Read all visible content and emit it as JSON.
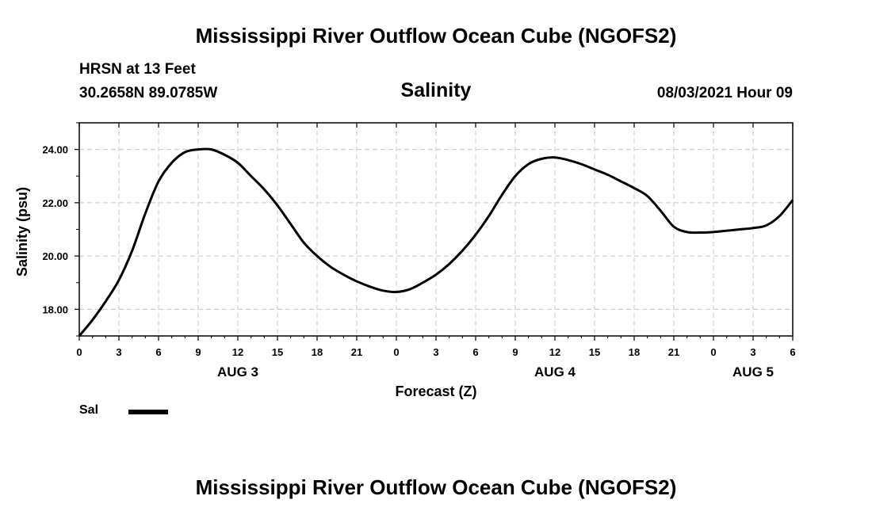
{
  "header": {
    "title_top": "Mississippi River Outflow Ocean Cube (NGOFS2)",
    "station": "HRSN at 13 Feet",
    "coords": "30.2658N  89.0785W",
    "subtitle": "Salinity",
    "timestamp": "08/03/2021 Hour 09",
    "title_bottom": "Mississippi River Outflow Ocean Cube (NGOFS2)"
  },
  "legend": {
    "series_label": "Sal",
    "color": "#000000"
  },
  "chart_data": {
    "type": "line",
    "title": "Salinity",
    "xlabel": "Forecast (Z)",
    "ylabel": "Salinity (psu)",
    "xlim": [
      0,
      54
    ],
    "ylim": [
      17,
      25
    ],
    "x_ticks": [
      0,
      3,
      6,
      9,
      12,
      15,
      18,
      21,
      24,
      27,
      30,
      33,
      36,
      39,
      42,
      45,
      48,
      51,
      54
    ],
    "x_tick_labels": [
      "0",
      "3",
      "6",
      "9",
      "12",
      "15",
      "18",
      "21",
      "0",
      "3",
      "6",
      "9",
      "12",
      "15",
      "18",
      "21",
      "0",
      "3",
      "6"
    ],
    "y_ticks": [
      18,
      20,
      22,
      24
    ],
    "y_tick_labels": [
      "18.00",
      "20.00",
      "22.00",
      "24.00"
    ],
    "day_labels": [
      {
        "x": 12,
        "label": "AUG 3"
      },
      {
        "x": 36,
        "label": "AUG 4"
      },
      {
        "x": 51,
        "label": "AUG 5"
      }
    ],
    "grid": true,
    "series": [
      {
        "name": "Sal",
        "color": "#000000",
        "x": [
          0,
          1,
          2,
          3,
          4,
          5,
          6,
          7,
          8,
          9,
          10,
          11,
          12,
          13,
          14,
          15,
          16,
          17,
          18,
          19,
          20,
          21,
          22,
          23,
          24,
          25,
          26,
          27,
          28,
          29,
          30,
          31,
          32,
          33,
          34,
          35,
          36,
          37,
          38,
          39,
          40,
          41,
          42,
          43,
          44,
          45,
          46,
          47,
          48,
          49,
          50,
          51,
          52,
          53,
          54
        ],
        "y": [
          17.0,
          17.6,
          18.3,
          19.1,
          20.2,
          21.6,
          22.8,
          23.5,
          23.9,
          24.0,
          24.0,
          23.8,
          23.5,
          23.0,
          22.5,
          21.9,
          21.2,
          20.5,
          20.0,
          19.6,
          19.3,
          19.05,
          18.85,
          18.7,
          18.65,
          18.75,
          19.0,
          19.3,
          19.7,
          20.2,
          20.8,
          21.5,
          22.3,
          23.0,
          23.45,
          23.65,
          23.7,
          23.6,
          23.45,
          23.25,
          23.05,
          22.8,
          22.55,
          22.25,
          21.7,
          21.1,
          20.9,
          20.88,
          20.9,
          20.95,
          21.0,
          21.05,
          21.15,
          21.5,
          22.1
        ]
      }
    ]
  }
}
